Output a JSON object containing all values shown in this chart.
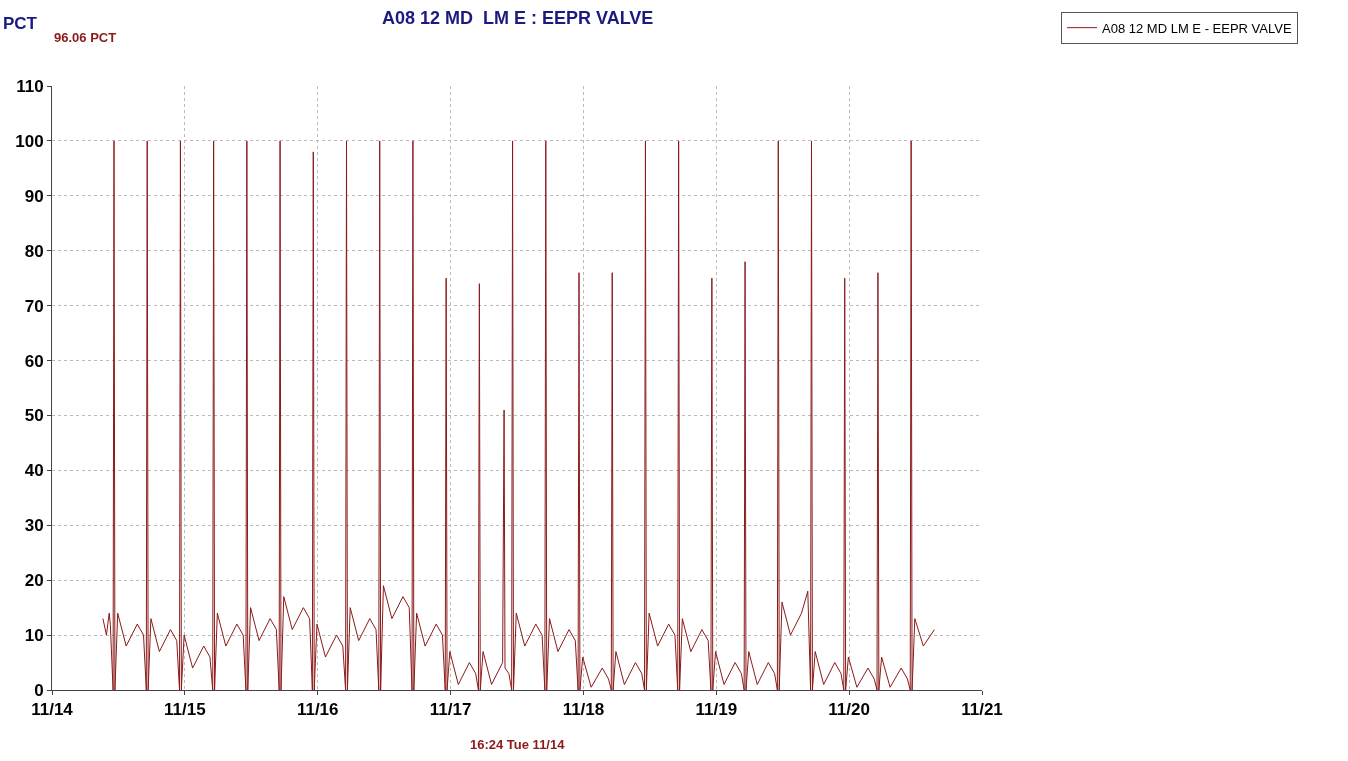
{
  "chart_data": {
    "type": "line",
    "title": "A08 12 MD  LM E : EEPR VALVE",
    "ylabel": "PCT",
    "annotations": [
      "96.06 PCT",
      "16:24 Tue 11/14"
    ],
    "xlim": [
      "--11-14",
      "--11-21"
    ],
    "xticks": [
      {
        "value": "--11-14",
        "label": "11/14"
      },
      {
        "value": "--11-15",
        "label": "11/15"
      },
      {
        "value": "--11-16",
        "label": "11/16"
      },
      {
        "value": "--11-17",
        "label": "11/17"
      },
      {
        "value": "--11-18",
        "label": "11/18"
      },
      {
        "value": "--11-19",
        "label": "11/19"
      },
      {
        "value": "--11-20",
        "label": "11/20"
      },
      {
        "value": "--11-21",
        "label": "11/21"
      }
    ],
    "ylim": [
      0,
      110
    ],
    "yticks": [
      0,
      10,
      20,
      30,
      40,
      50,
      60,
      70,
      80,
      90,
      100,
      110
    ],
    "grid": true,
    "legend": "top right",
    "marker": "none",
    "line_style": "solid",
    "series": [
      {
        "name": "A08 12 MD LM E - EEPR VALVE",
        "color": "#8b1a1a",
        "x": [
          "--11-14T09:12",
          "--11-14T09:50",
          "--11-14T10:20",
          "--11-14T10:32",
          "--11-14T11:02",
          "--11-14T11:12",
          "--11-14T11:22",
          "--11-14T11:52",
          "--11-14T13:24",
          "--11-14T15:24",
          "--11-14T16:32",
          "--11-14T17:02",
          "--11-14T17:12",
          "--11-14T17:22",
          "--11-14T17:52",
          "--11-14T19:24",
          "--11-14T21:24",
          "--11-14T22:32",
          "--11-14T23:02",
          "--11-14T23:12",
          "--11-14T23:22",
          "--11-14T23:52",
          "--11-15T01:24",
          "--11-15T03:24",
          "--11-15T04:32",
          "--11-15T05:02",
          "--11-15T05:12",
          "--11-15T05:22",
          "--11-15T05:52",
          "--11-15T07:24",
          "--11-15T09:24",
          "--11-15T10:32",
          "--11-15T11:02",
          "--11-15T11:12",
          "--11-15T11:22",
          "--11-15T11:52",
          "--11-15T13:24",
          "--11-15T15:24",
          "--11-15T16:32",
          "--11-15T17:02",
          "--11-15T17:12",
          "--11-15T17:22",
          "--11-15T17:52",
          "--11-15T19:24",
          "--11-15T21:24",
          "--11-15T22:32",
          "--11-15T23:02",
          "--11-15T23:12",
          "--11-15T23:22",
          "--11-15T23:52",
          "--11-16T01:24",
          "--11-16T03:24",
          "--11-16T04:32",
          "--11-16T05:02",
          "--11-16T05:12",
          "--11-16T05:22",
          "--11-16T05:52",
          "--11-16T07:24",
          "--11-16T09:24",
          "--11-16T10:32",
          "--11-16T11:02",
          "--11-16T11:12",
          "--11-16T11:22",
          "--11-16T11:52",
          "--11-16T13:24",
          "--11-16T15:24",
          "--11-16T16:32",
          "--11-16T17:02",
          "--11-16T17:12",
          "--11-16T17:22",
          "--11-16T17:52",
          "--11-16T19:24",
          "--11-16T21:24",
          "--11-16T22:32",
          "--11-16T23:02",
          "--11-16T23:12",
          "--11-16T23:22",
          "--11-16T23:52",
          "--11-17T01:24",
          "--11-17T03:24",
          "--11-17T04:32",
          "--11-17T05:02",
          "--11-17T05:12",
          "--11-17T05:22",
          "--11-17T05:52",
          "--11-17T07:24",
          "--11-17T09:24",
          "--11-17T09:40",
          "--11-17T09:50",
          "--11-17T10:32",
          "--11-17T11:02",
          "--11-17T11:12",
          "--11-17T11:22",
          "--11-17T11:52",
          "--11-17T13:24",
          "--11-17T15:24",
          "--11-17T16:32",
          "--11-17T17:02",
          "--11-17T17:12",
          "--11-17T17:22",
          "--11-17T17:52",
          "--11-17T19:24",
          "--11-17T21:24",
          "--11-17T22:32",
          "--11-17T23:02",
          "--11-17T23:12",
          "--11-17T23:22",
          "--11-17T23:52",
          "--11-18T01:24",
          "--11-18T03:24",
          "--11-18T04:32",
          "--11-18T05:02",
          "--11-18T05:12",
          "--11-18T05:22",
          "--11-18T05:52",
          "--11-18T07:24",
          "--11-18T09:24",
          "--11-18T10:32",
          "--11-18T11:02",
          "--11-18T11:12",
          "--11-18T11:22",
          "--11-18T11:52",
          "--11-18T13:24",
          "--11-18T15:24",
          "--11-18T16:32",
          "--11-18T17:02",
          "--11-18T17:12",
          "--11-18T17:22",
          "--11-18T17:52",
          "--11-18T19:24",
          "--11-18T21:24",
          "--11-18T22:32",
          "--11-18T23:02",
          "--11-18T23:12",
          "--11-18T23:22",
          "--11-18T23:52",
          "--11-19T01:24",
          "--11-19T03:24",
          "--11-19T04:32",
          "--11-19T05:02",
          "--11-19T05:12",
          "--11-19T05:22",
          "--11-19T05:52",
          "--11-19T07:24",
          "--11-19T09:24",
          "--11-19T10:32",
          "--11-19T11:02",
          "--11-19T11:12",
          "--11-19T11:22",
          "--11-19T11:52",
          "--11-19T13:24",
          "--11-19T15:24",
          "--11-19T16:32",
          "--11-19T17:02",
          "--11-19T17:12",
          "--11-19T17:22",
          "--11-19T17:52",
          "--11-19T19:24",
          "--11-19T21:24",
          "--11-19T22:32",
          "--11-19T23:02",
          "--11-19T23:12",
          "--11-19T23:22",
          "--11-19T23:52",
          "--11-20T01:24",
          "--11-20T03:24",
          "--11-20T04:32",
          "--11-20T05:02",
          "--11-20T05:12",
          "--11-20T05:22",
          "--11-20T05:52",
          "--11-20T07:24",
          "--11-20T09:24",
          "--11-20T10:32",
          "--11-20T11:02",
          "--11-20T11:12",
          "--11-20T11:22",
          "--11-20T11:52",
          "--11-20T13:24",
          "--11-20T15:24"
        ],
        "values": [
          13,
          10,
          14,
          12,
          0,
          100,
          0,
          14,
          8,
          12,
          10,
          0,
          100,
          0,
          13,
          7,
          11,
          9,
          0,
          100,
          0,
          10,
          4,
          8,
          6,
          0,
          100,
          0,
          14,
          8,
          12,
          10,
          0,
          100,
          0,
          15,
          9,
          13,
          11,
          0,
          100,
          0,
          17,
          11,
          15,
          13,
          0,
          98,
          0,
          12,
          6,
          10,
          8,
          0,
          100,
          0,
          15,
          9,
          13,
          11,
          0,
          100,
          0,
          19,
          13,
          17,
          15,
          0,
          100,
          0,
          14,
          8,
          12,
          10,
          0,
          75,
          0,
          7,
          1,
          5,
          3,
          0,
          74,
          0,
          7,
          1,
          5,
          51,
          4,
          3,
          0,
          100,
          0,
          14,
          8,
          12,
          10,
          0,
          100,
          0,
          13,
          7,
          11,
          9,
          0,
          76,
          0,
          6,
          0.5,
          4,
          2,
          0,
          76,
          0,
          7,
          1,
          5,
          3,
          0,
          100,
          0,
          14,
          8,
          12,
          10,
          0,
          100,
          0,
          13,
          7,
          11,
          9,
          0,
          75,
          0,
          7,
          1,
          5,
          3,
          0,
          78,
          0,
          7,
          1,
          5,
          3,
          0,
          100,
          0,
          16,
          10,
          14,
          18,
          0,
          100,
          0,
          7,
          1,
          5,
          3,
          0,
          75,
          0,
          6,
          0.5,
          4,
          2,
          0,
          76,
          0,
          6,
          0.5,
          4,
          2,
          0,
          100,
          0,
          13,
          8,
          11
        ]
      }
    ]
  }
}
